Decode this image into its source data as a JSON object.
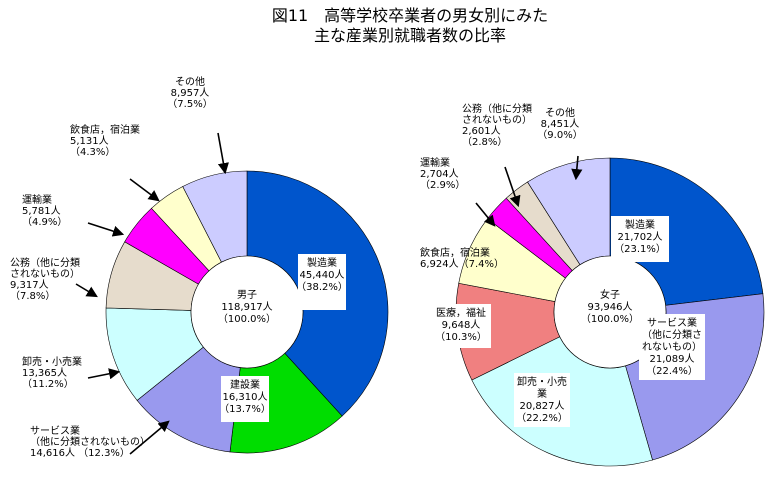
{
  "title": {
    "line1": "図11　高等学校卒業者の男女別にみた",
    "line2": "主な産業別就職者数の比率"
  },
  "chart_data": [
    {
      "type": "pie",
      "variant": "donut",
      "center_label": [
        "男子",
        "118,917人",
        "（100.0%）"
      ],
      "slices": [
        {
          "key": "manufacturing",
          "label": [
            "製造業",
            "45,440人",
            "（38.2%）"
          ],
          "value": 45440,
          "percent": 38.2,
          "color": "#0055cc"
        },
        {
          "key": "construction",
          "label": [
            "建設業",
            "16,310人",
            "（13.7%）"
          ],
          "value": 16310,
          "percent": 13.7,
          "color": "#00dd00"
        },
        {
          "key": "services",
          "label": [
            "サービス業",
            "（他に分類されないもの）",
            "14,616人 （12.3%）"
          ],
          "value": 14616,
          "percent": 12.3,
          "color": "#9999ee"
        },
        {
          "key": "wholesale",
          "label": [
            "卸売・小売業",
            "13,365人",
            "（11.2%）"
          ],
          "value": 13365,
          "percent": 11.2,
          "color": "#ccffff"
        },
        {
          "key": "public",
          "label": [
            "公務（他に分類",
            "されないもの）",
            "9,317人",
            "（7.8%）"
          ],
          "value": 9317,
          "percent": 7.8,
          "color": "#e6dccc"
        },
        {
          "key": "transport",
          "label": [
            "運輸業",
            "5,781人",
            "（4.9%）"
          ],
          "value": 5781,
          "percent": 4.9,
          "color": "#ff00ff"
        },
        {
          "key": "food",
          "label": [
            "飲食店，宿泊業",
            "5,131人",
            "（4.3%）"
          ],
          "value": 5131,
          "percent": 4.3,
          "color": "#ffffcc"
        },
        {
          "key": "other",
          "label": [
            "その他",
            "8,957人",
            "（7.5%）"
          ],
          "value": 8957,
          "percent": 7.5,
          "color": "#ccccff"
        }
      ]
    },
    {
      "type": "pie",
      "variant": "donut",
      "center_label": [
        "女子",
        "93,946人",
        "（100.0%）"
      ],
      "slices": [
        {
          "key": "manufacturing",
          "label": [
            "製造業",
            "21,702人",
            "（23.1%）"
          ],
          "value": 21702,
          "percent": 23.1,
          "color": "#0055cc"
        },
        {
          "key": "services",
          "label": [
            "サービス業",
            "（他に分類さ",
            "れないもの）",
            "21,089人",
            "（22.4%）"
          ],
          "value": 21089,
          "percent": 22.4,
          "color": "#9999ee"
        },
        {
          "key": "wholesale",
          "label": [
            "卸売・小売",
            "業",
            "20,827人",
            "（22.2%）"
          ],
          "value": 20827,
          "percent": 22.2,
          "color": "#ccffff"
        },
        {
          "key": "medical",
          "label": [
            "医療，福祉",
            "9,648人",
            "（10.3%）"
          ],
          "value": 9648,
          "percent": 10.3,
          "color": "#f08080"
        },
        {
          "key": "food",
          "label": [
            "飲食店，宿泊業",
            "6,924人（7.4%）"
          ],
          "value": 6924,
          "percent": 7.4,
          "color": "#ffffcc"
        },
        {
          "key": "transport",
          "label": [
            "運輸業",
            "2,704人",
            "（2.9%）"
          ],
          "value": 2704,
          "percent": 2.9,
          "color": "#ff00ff"
        },
        {
          "key": "public",
          "label": [
            "公務（他に分類",
            "されないもの）",
            "2,601人",
            "（2.8%）"
          ],
          "value": 2601,
          "percent": 2.8,
          "color": "#e6dccc"
        },
        {
          "key": "other",
          "label": [
            "その他",
            "8,451人",
            "（9.0%）"
          ],
          "value": 8451,
          "percent": 9.0,
          "color": "#ccccff"
        }
      ]
    }
  ]
}
